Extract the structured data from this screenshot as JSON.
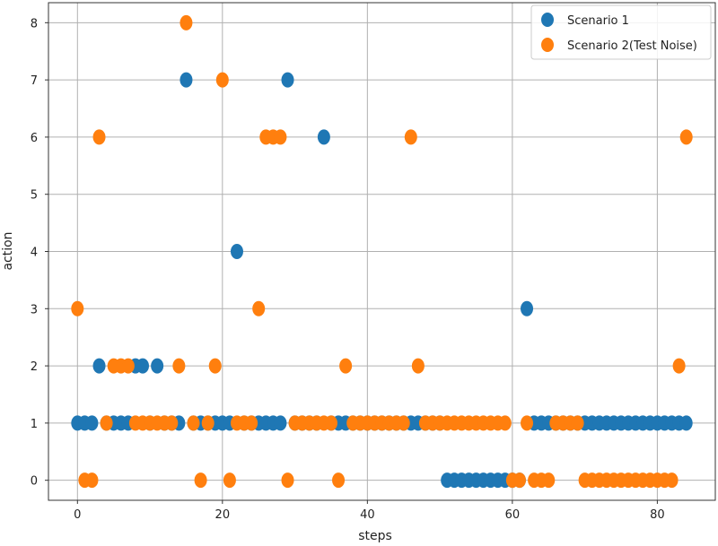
{
  "chart_data": {
    "type": "scatter",
    "title": "",
    "xlabel": "steps",
    "ylabel": "action",
    "xlim": [
      -4,
      88
    ],
    "ylim": [
      -0.35,
      8.35
    ],
    "xticks": [
      0,
      20,
      40,
      60,
      80
    ],
    "yticks": [
      0,
      1,
      2,
      3,
      4,
      5,
      6,
      7,
      8
    ],
    "grid": true,
    "legend_position": "top-right",
    "series": [
      {
        "name": "Scenario 1",
        "color": "#1f77b4",
        "x": [
          0,
          1,
          2,
          3,
          4,
          5,
          6,
          7,
          8,
          9,
          10,
          11,
          12,
          13,
          14,
          15,
          16,
          17,
          18,
          19,
          20,
          21,
          22,
          23,
          24,
          25,
          26,
          27,
          28,
          29,
          30,
          31,
          32,
          33,
          34,
          35,
          36,
          37,
          38,
          39,
          40,
          41,
          42,
          43,
          44,
          45,
          46,
          47,
          48,
          49,
          50,
          51,
          52,
          53,
          54,
          55,
          56,
          57,
          58,
          59,
          60,
          61,
          62,
          63,
          64,
          65,
          66,
          67,
          68,
          69,
          70,
          71,
          72,
          73,
          74,
          75,
          76,
          77,
          78,
          79,
          80,
          81,
          82,
          83,
          84
        ],
        "y": [
          1,
          1,
          1,
          2,
          1,
          1,
          1,
          1,
          2,
          2,
          1,
          2,
          1,
          1,
          1,
          7,
          1,
          1,
          1,
          1,
          1,
          1,
          4,
          1,
          1,
          1,
          1,
          1,
          1,
          7,
          1,
          1,
          1,
          1,
          6,
          1,
          1,
          1,
          1,
          1,
          1,
          1,
          1,
          1,
          1,
          1,
          1,
          1,
          1,
          1,
          1,
          0,
          0,
          0,
          0,
          0,
          0,
          0,
          0,
          0,
          0,
          0,
          3,
          1,
          1,
          1,
          1,
          1,
          1,
          1,
          1,
          1,
          1,
          1,
          1,
          1,
          1,
          1,
          1,
          1,
          1,
          1,
          1,
          1,
          1
        ]
      },
      {
        "name": "Scenario 2(Test Noise)",
        "color": "#ff7f0e",
        "x": [
          0,
          1,
          2,
          3,
          4,
          5,
          6,
          7,
          8,
          9,
          10,
          11,
          12,
          13,
          14,
          15,
          16,
          17,
          18,
          19,
          20,
          21,
          22,
          23,
          24,
          25,
          26,
          27,
          28,
          29,
          30,
          31,
          32,
          33,
          34,
          35,
          36,
          37,
          38,
          39,
          40,
          41,
          42,
          43,
          44,
          45,
          46,
          47,
          48,
          49,
          50,
          51,
          52,
          53,
          54,
          55,
          56,
          57,
          58,
          59,
          60,
          61,
          62,
          63,
          64,
          65,
          66,
          67,
          68,
          69,
          70,
          71,
          72,
          73,
          74,
          75,
          76,
          77,
          78,
          79,
          80,
          81,
          82,
          83,
          84
        ],
        "y": [
          3,
          0,
          0,
          6,
          1,
          2,
          2,
          2,
          1,
          1,
          1,
          1,
          1,
          1,
          2,
          8,
          1,
          0,
          1,
          2,
          7,
          0,
          1,
          1,
          1,
          3,
          6,
          6,
          6,
          0,
          1,
          1,
          1,
          1,
          1,
          1,
          0,
          2,
          1,
          1,
          1,
          1,
          1,
          1,
          1,
          1,
          6,
          2,
          1,
          1,
          1,
          1,
          1,
          1,
          1,
          1,
          1,
          1,
          1,
          1,
          0,
          0,
          1,
          0,
          0,
          0,
          1,
          1,
          1,
          1,
          0,
          0,
          0,
          0,
          0,
          0,
          0,
          0,
          0,
          0,
          0,
          0,
          0,
          2,
          6
        ]
      }
    ]
  }
}
